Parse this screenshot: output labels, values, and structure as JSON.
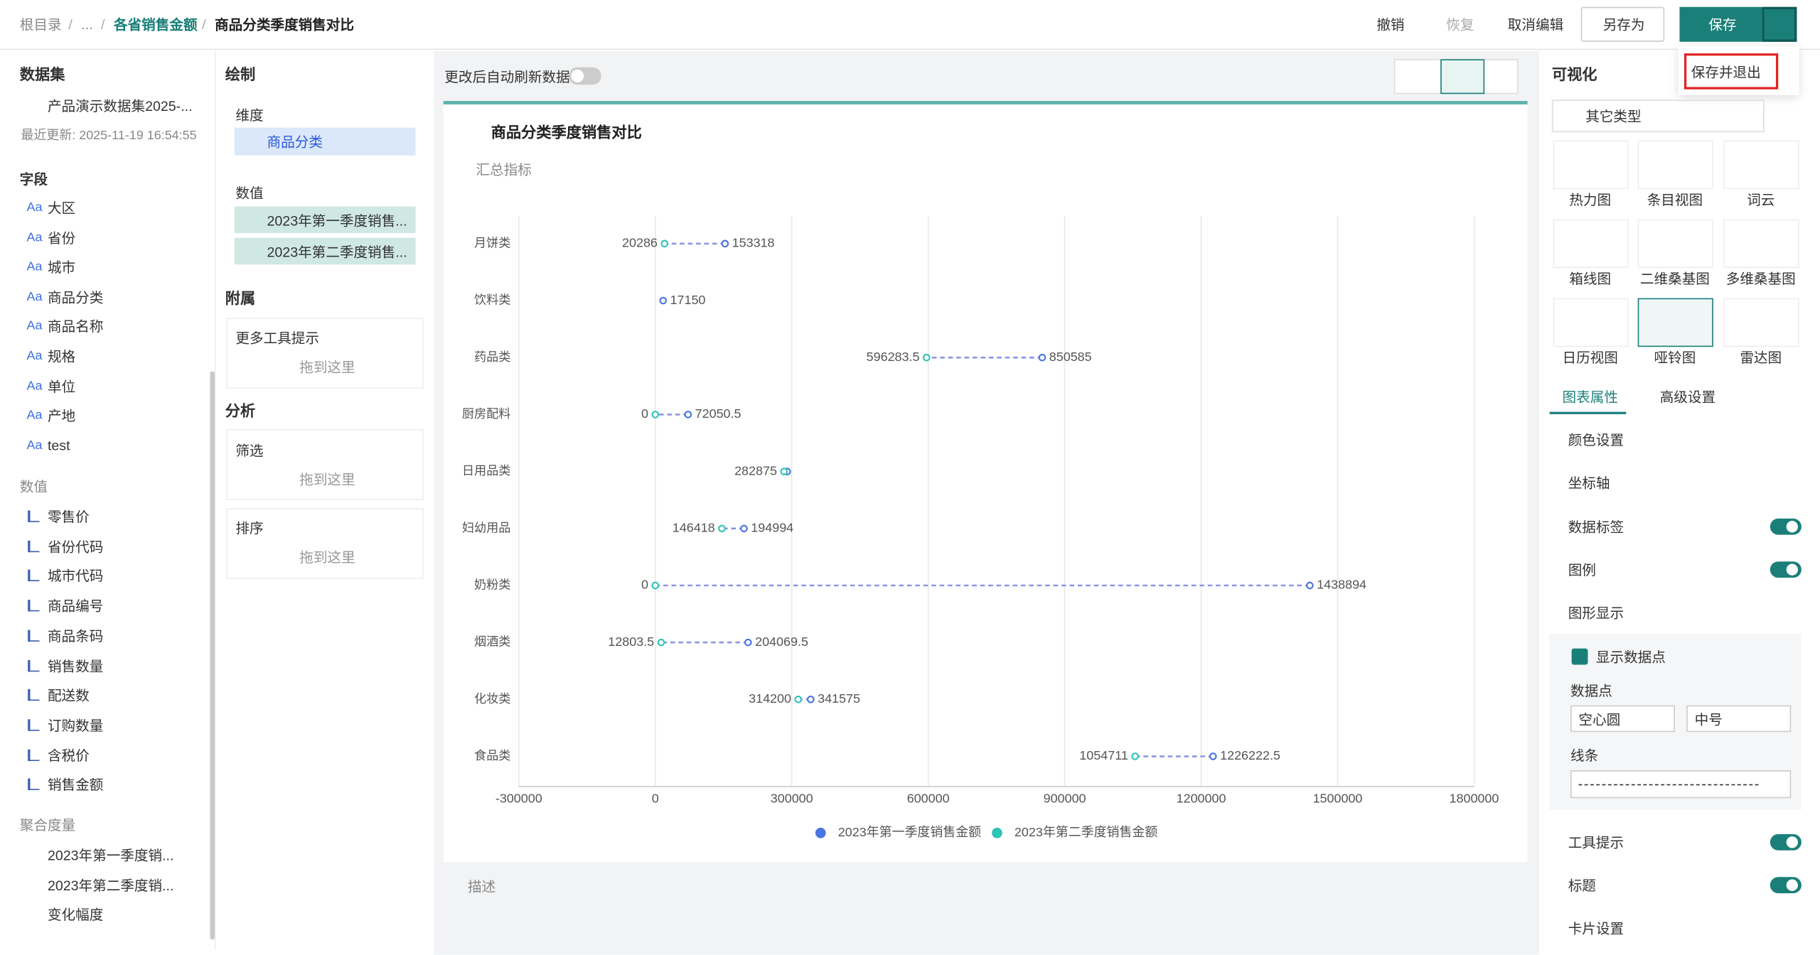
{
  "header": {
    "breadcrumb": [
      "根目录",
      "...",
      "各省销售金额",
      "商品分类季度销售对比"
    ],
    "actions": [
      "撤销",
      "恢复",
      "取消编辑",
      "另存为"
    ],
    "save": "保存",
    "menu": "保存并退出"
  },
  "left": {
    "title": "数据集",
    "dataset": "产品演示数据集2025-...",
    "updated": "最近更新: 2025-11-19 16:54:55",
    "fields_title": "字段",
    "dimensions": [
      "大区",
      "省份",
      "城市",
      "商品分类",
      "商品名称",
      "规格",
      "单位",
      "产地",
      "test"
    ],
    "measures_title": "数值",
    "measures": [
      "零售价",
      "省份代码",
      "城市代码",
      "商品编号",
      "商品条码",
      "销售数量",
      "配送数",
      "订购数量",
      "含税价",
      "销售金额"
    ],
    "agg_title": "聚合度量",
    "agg": [
      "2023年第一季度销...",
      "2023年第二季度销...",
      "变化幅度"
    ]
  },
  "config": {
    "draw": "绘制",
    "dim_label": "维度",
    "dim_chip": "商品分类",
    "val_label": "数值",
    "val_chips": [
      "2023年第一季度销售...",
      "2023年第二季度销售..."
    ],
    "attach": "附属",
    "tooltip": "更多工具提示",
    "drop": "拖到这里",
    "analysis": "分析",
    "filter": "筛选",
    "sort": "排序"
  },
  "canvas": {
    "auto_refresh": "更改后自动刷新数据",
    "summary": "汇总指标",
    "describe": "描述"
  },
  "right": {
    "title": "可视化",
    "type_select": "其它类型",
    "types": [
      "热力图",
      "条目视图",
      "词云",
      "箱线图",
      "二维桑基图",
      "多维桑基图",
      "日历视图",
      "哑铃图",
      "雷达图"
    ],
    "tabs": [
      "图表属性",
      "高级设置"
    ],
    "sections": [
      "颜色设置",
      "坐标轴",
      "数据标签",
      "图例",
      "图形显示"
    ],
    "show_points": "显示数据点",
    "points_label": "数据点",
    "point_shape": "空心圆",
    "point_size": "中号",
    "line_label": "线条",
    "sections_after": [
      "工具提示",
      "标题",
      "卡片设置"
    ]
  },
  "chart_data": {
    "type": "dumbbell",
    "title": "商品分类季度销售对比",
    "categories": [
      "月饼类",
      "饮料类",
      "药品类",
      "厨房配料",
      "日用品类",
      "妇幼用品",
      "奶粉类",
      "烟酒类",
      "化妆类",
      "食品类"
    ],
    "series": [
      {
        "name": "2023年第一季度销售金额",
        "color": "#4a74e0",
        "values": [
          153318,
          17150,
          850585,
          72050.5,
          290000,
          194994,
          1438894,
          204069.5,
          341575,
          1226222.5
        ],
        "value_labels": [
          "153318",
          "17150",
          "850585",
          "72050.5",
          null,
          "194994",
          "1438894",
          "204069.5",
          "341575",
          "1226222.5"
        ]
      },
      {
        "name": "2023年第二季度销售金额",
        "color": "#2ec4b6",
        "values": [
          20286,
          null,
          596283.5,
          0,
          282875,
          146418,
          0,
          12803.5,
          314200,
          1054711
        ],
        "value_labels": [
          "20286",
          null,
          "596283.5",
          "0",
          "282875",
          "146418",
          "0",
          "12803.5",
          "314200",
          "1054711"
        ]
      }
    ],
    "xlim": [
      -300000,
      1800000
    ],
    "xticks": [
      -300000,
      0,
      300000,
      600000,
      900000,
      1200000,
      1500000,
      1800000
    ],
    "grid": true,
    "legend": "bottom"
  }
}
